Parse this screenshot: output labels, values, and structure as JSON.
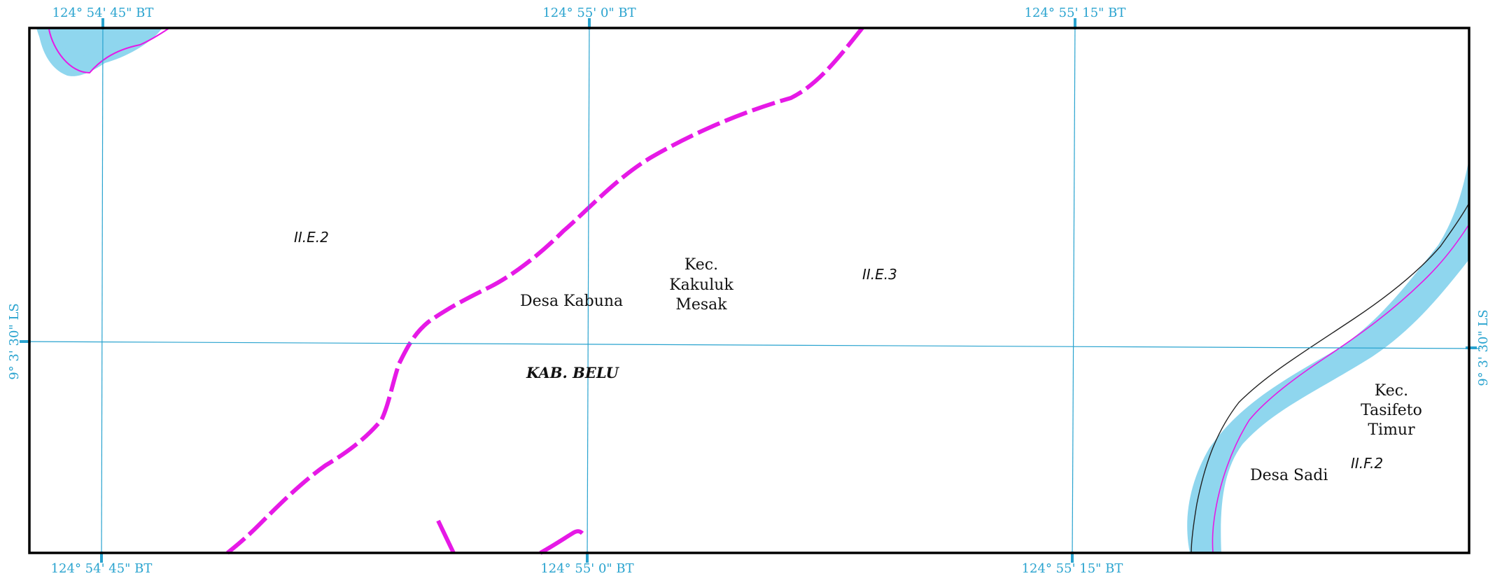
{
  "colors": {
    "grid": "#29A3CF",
    "frame": "#000000",
    "river_fill": "#8FD6EE",
    "boundary": "#E619E6",
    "river_line": "#222222"
  },
  "grid_labels": {
    "top": [
      "124° 54' 45\" BT",
      "124° 55' 0\" BT",
      "124° 55' 15\" BT"
    ],
    "bottom": [
      "124° 54' 45\" BT",
      "124° 55' 0\" BT",
      "124° 55' 15\" BT"
    ],
    "left": "9° 3' 30\" LS",
    "right": "9° 3' 30\" LS"
  },
  "labels": {
    "code_ile2": "II.E.2",
    "code_ile3": "II.E.3",
    "code_ilf2": "II.F.2",
    "desa_kabuna": "Desa Kabuna",
    "kec_kakuluk": [
      "Kec.",
      "Kakuluk",
      "Mesak"
    ],
    "kab_belu": "KAB. BELU",
    "kec_tasifeto": [
      "Kec.",
      "Tasifeto",
      "Timur"
    ],
    "desa_sadi": "Desa Sadi"
  }
}
